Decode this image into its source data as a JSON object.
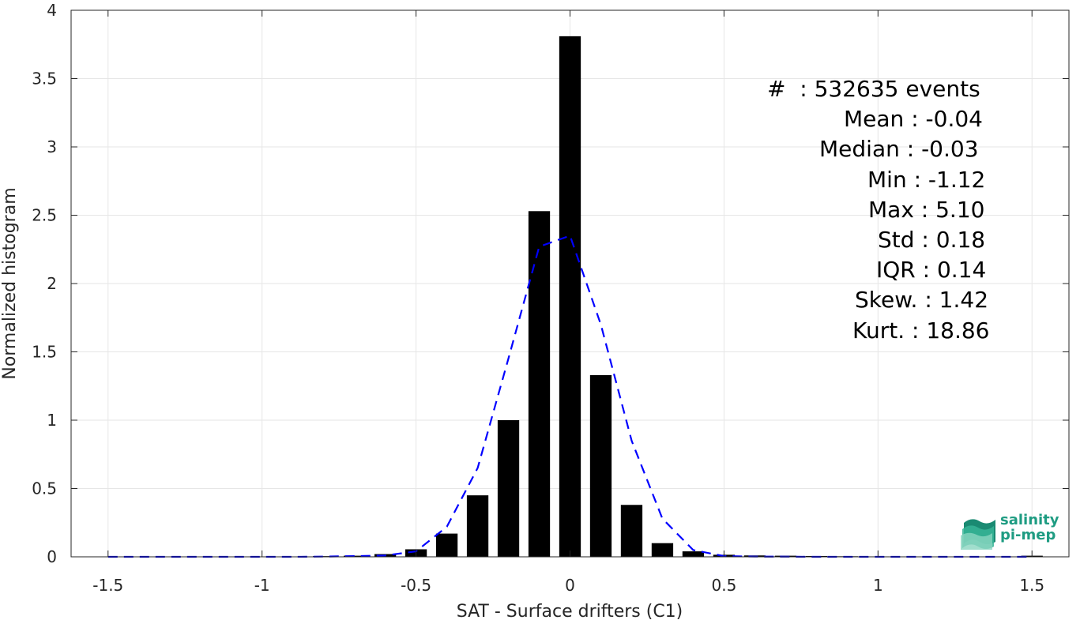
{
  "chart_data": {
    "type": "bar",
    "xlabel": "SAT - Surface drifters (C1)",
    "ylabel": "Normalized histogram",
    "xlim": [
      -1.62,
      1.62
    ],
    "ylim": [
      0,
      4
    ],
    "xticks": [
      -1.5,
      -1,
      -0.5,
      0,
      0.5,
      1,
      1.5
    ],
    "xtick_labels": [
      "-1.5",
      "-1",
      "-0.5",
      "0",
      "0.5",
      "1",
      "1.5"
    ],
    "yticks": [
      0,
      0.5,
      1,
      1.5,
      2,
      2.5,
      3,
      3.5,
      4
    ],
    "ytick_labels": [
      "0",
      "0.5",
      "1",
      "1.5",
      "2",
      "2.5",
      "3",
      "3.5",
      "4"
    ],
    "grid": true,
    "bar_width": 0.07,
    "bars": {
      "x": [
        -1.5,
        -1.4,
        -1.3,
        -1.2,
        -1.1,
        -1.0,
        -0.9,
        -0.8,
        -0.7,
        -0.6,
        -0.5,
        -0.4,
        -0.3,
        -0.2,
        -0.1,
        0.0,
        0.1,
        0.2,
        0.3,
        0.4,
        0.5,
        0.6,
        0.7,
        0.8,
        0.9,
        1.0,
        1.1,
        1.2,
        1.3,
        1.4,
        1.5
      ],
      "values": [
        0.0,
        0.0,
        0.0,
        0.0,
        0.0,
        0.0,
        0.0,
        0.005,
        0.008,
        0.02,
        0.055,
        0.17,
        0.45,
        1.0,
        2.53,
        3.81,
        1.33,
        0.38,
        0.1,
        0.04,
        0.015,
        0.01,
        0.008,
        0.006,
        0.004,
        0.003,
        0.002,
        0.002,
        0.002,
        0.002,
        0.008
      ],
      "color": "#000000"
    },
    "fit_curve": {
      "style": "dashed",
      "color": "#0000ff",
      "x": [
        -1.5,
        -1.3,
        -1.1,
        -0.9,
        -0.8,
        -0.7,
        -0.6,
        -0.5,
        -0.4,
        -0.3,
        -0.2,
        -0.1,
        0.0,
        0.1,
        0.2,
        0.3,
        0.4,
        0.5,
        0.6,
        0.7,
        0.8,
        1.0,
        1.2,
        1.5
      ],
      "y": [
        0.0,
        0.0,
        0.0,
        0.0,
        0.002,
        0.005,
        0.01,
        0.04,
        0.22,
        0.65,
        1.45,
        2.27,
        2.35,
        1.7,
        0.85,
        0.28,
        0.05,
        0.005,
        0.002,
        0.001,
        0.0,
        0.0,
        0.0,
        0.0
      ]
    }
  },
  "stats": [
    "#  : 532635 events",
    "Mean : -0.04",
    "Median : -0.03",
    "Min : -1.12",
    "Max : 5.10",
    "Std : 0.18",
    "IQR : 0.14",
    "Skew. : 1.42",
    "Kurt. : 18.86"
  ],
  "logo": {
    "line1": "salinity",
    "line2": "pi-mep"
  },
  "colors": {
    "axis": "#262626",
    "grid": "#e6e6e6",
    "logo_teal": "#1e9c82"
  }
}
